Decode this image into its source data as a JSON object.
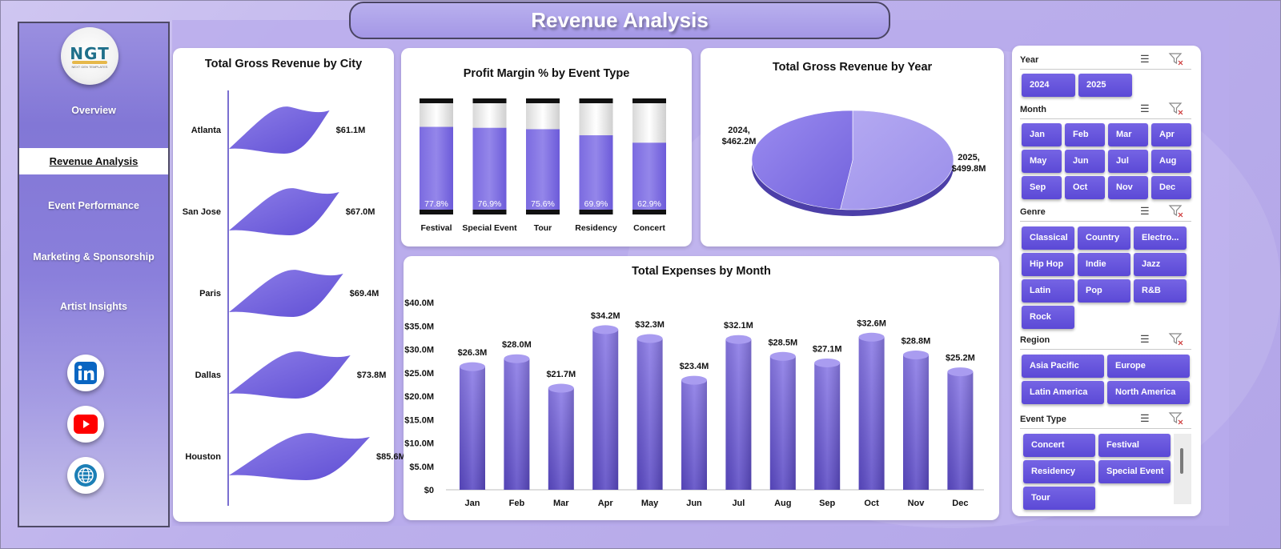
{
  "title": "Revenue Analysis",
  "logo": {
    "text": "NGT",
    "subtext": "NEXT GEN TEMPLATES"
  },
  "nav": [
    {
      "label": "Overview",
      "active": false
    },
    {
      "label": "Revenue Analysis",
      "active": true
    },
    {
      "label": "Event Performance",
      "active": false
    },
    {
      "label": "Marketing & Sponsorship",
      "active": false
    },
    {
      "label": "Artist Insights",
      "active": false
    }
  ],
  "social": [
    {
      "icon": "linkedin-icon",
      "color": "#0a66c2"
    },
    {
      "icon": "youtube-icon",
      "color": "#ff0000"
    },
    {
      "icon": "globe-icon",
      "color": "#1c7fb6"
    }
  ],
  "colors": {
    "accent": "#7d6ee6",
    "slicer_button": "#6251dc"
  },
  "chart_data": [
    {
      "type": "bar",
      "title": "Total Gross Revenue by City",
      "orientation": "horizontal",
      "categories": [
        "Atlanta",
        "San Jose",
        "Paris",
        "Dallas",
        "Houston"
      ],
      "values": [
        61.1,
        67.0,
        69.4,
        73.8,
        85.6
      ],
      "data_labels": [
        "$61.1M",
        "$67.0M",
        "$69.4M",
        "$73.8M",
        "$85.6M"
      ],
      "unit": "$M"
    },
    {
      "type": "bar",
      "title": "Profit Margin % by Event Type",
      "categories": [
        "Festival",
        "Special Event",
        "Tour",
        "Residency",
        "Concert"
      ],
      "values": [
        77.8,
        76.9,
        75.6,
        69.9,
        62.9
      ],
      "data_labels": [
        "77.8%",
        "76.9%",
        "75.6%",
        "69.9%",
        "62.9%"
      ],
      "ylim": [
        0,
        100
      ]
    },
    {
      "type": "pie",
      "title": "Total Gross Revenue by Year",
      "categories": [
        "2024",
        "2025"
      ],
      "values": [
        462.2,
        499.8
      ],
      "data_labels": [
        "2024,\n$462.2M",
        "2025,\n$499.8M"
      ]
    },
    {
      "type": "bar",
      "title": "Total Expenses by Month",
      "categories": [
        "Jan",
        "Feb",
        "Mar",
        "Apr",
        "May",
        "Jun",
        "Jul",
        "Aug",
        "Sep",
        "Oct",
        "Nov",
        "Dec"
      ],
      "values": [
        26.3,
        28.0,
        21.7,
        34.2,
        32.3,
        23.4,
        32.1,
        28.5,
        27.1,
        32.6,
        28.8,
        25.2
      ],
      "data_labels": [
        "$26.3M",
        "$28.0M",
        "$21.7M",
        "$34.2M",
        "$32.3M",
        "$23.4M",
        "$32.1M",
        "$28.5M",
        "$27.1M",
        "$32.6M",
        "$28.8M",
        "$25.2M"
      ],
      "yticks": [
        "$0",
        "$5.0M",
        "$10.0M",
        "$15.0M",
        "$20.0M",
        "$25.0M",
        "$30.0M",
        "$35.0M",
        "$40.0M"
      ],
      "ylim": [
        0,
        40
      ]
    }
  ],
  "slicers": [
    {
      "title": "Year",
      "cols": 3,
      "items": [
        "2024",
        "2025"
      ]
    },
    {
      "title": "Month",
      "cols": 4,
      "items": [
        "Jan",
        "Feb",
        "Mar",
        "Apr",
        "May",
        "Jun",
        "Jul",
        "Aug",
        "Sep",
        "Oct",
        "Nov",
        "Dec"
      ]
    },
    {
      "title": "Genre",
      "cols": 3,
      "items": [
        "Classical",
        "Country",
        "Electro...",
        "Hip Hop",
        "Indie",
        "Jazz",
        "Latin",
        "Pop",
        "R&B",
        "Rock"
      ]
    },
    {
      "title": "Region",
      "cols": 2,
      "items": [
        "Asia Pacific",
        "Europe",
        "Latin America",
        "North America"
      ]
    },
    {
      "title": "Event Type",
      "cols": 2,
      "items": [
        "Concert",
        "Festival",
        "Residency",
        "Special Event",
        "Tour"
      ]
    }
  ]
}
